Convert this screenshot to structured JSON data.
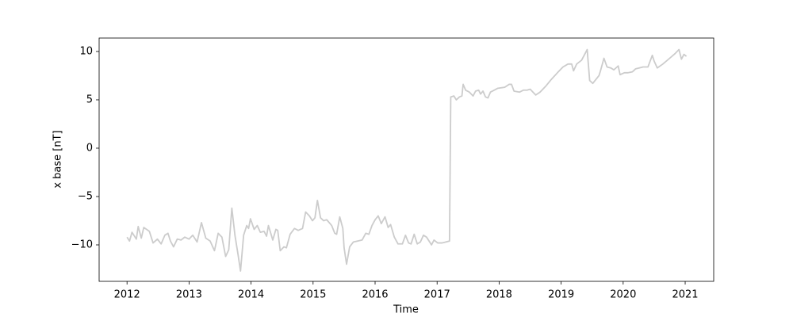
{
  "chart_data": {
    "type": "line",
    "xlabel": "Time",
    "ylabel": "x base [nT]",
    "xlim": [
      2011.55,
      2021.46
    ],
    "ylim": [
      -13.77,
      11.39
    ],
    "xticks": [
      2012,
      2013,
      2014,
      2015,
      2016,
      2017,
      2018,
      2019,
      2020,
      2021
    ],
    "yticks": [
      {
        "value": -10,
        "label": "−10"
      },
      {
        "value": -5,
        "label": "−5"
      },
      0,
      5,
      10
    ],
    "grid": false,
    "series": [
      {
        "color": "#cccccc",
        "x": [
          2012.0,
          2012.04,
          2012.08,
          2012.15,
          2012.18,
          2012.23,
          2012.27,
          2012.36,
          2012.42,
          2012.49,
          2012.55,
          2012.61,
          2012.66,
          2012.7,
          2012.75,
          2012.81,
          2012.87,
          2012.93,
          2013.0,
          2013.06,
          2013.13,
          2013.2,
          2013.27,
          2013.34,
          2013.41,
          2013.47,
          2013.53,
          2013.59,
          2013.64,
          2013.69,
          2013.74,
          2013.79,
          2013.83,
          2013.88,
          2013.93,
          2013.96,
          2013.99,
          2014.05,
          2014.1,
          2014.15,
          2014.21,
          2014.25,
          2014.28,
          2014.35,
          2014.4,
          2014.43,
          2014.47,
          2014.53,
          2014.57,
          2014.63,
          2014.7,
          2014.76,
          2014.83,
          2014.88,
          2014.94,
          2014.99,
          2015.03,
          2015.07,
          2015.12,
          2015.17,
          2015.22,
          2015.3,
          2015.35,
          2015.38,
          2015.43,
          2015.48,
          2015.5,
          2015.54,
          2015.59,
          2015.65,
          2015.72,
          2015.79,
          2015.85,
          2015.9,
          2015.95,
          2016.0,
          2016.05,
          2016.1,
          2016.16,
          2016.21,
          2016.25,
          2016.31,
          2016.37,
          2016.44,
          2016.49,
          2016.54,
          2016.58,
          2016.63,
          2016.68,
          2016.73,
          2016.78,
          2016.83,
          2016.91,
          2016.95,
          2017.01,
          2017.08,
          2017.14,
          2017.2,
          2017.22,
          2017.27,
          2017.31,
          2017.36,
          2017.4,
          2017.42,
          2017.46,
          2017.52,
          2017.58,
          2017.62,
          2017.67,
          2017.7,
          2017.74,
          2017.78,
          2017.82,
          2017.86,
          2017.92,
          2017.98,
          2018.09,
          2018.16,
          2018.2,
          2018.24,
          2018.33,
          2018.39,
          2018.45,
          2018.5,
          2018.59,
          2018.66,
          2018.75,
          2018.84,
          2018.94,
          2019.03,
          2019.11,
          2019.17,
          2019.2,
          2019.25,
          2019.33,
          2019.42,
          2019.46,
          2019.51,
          2019.56,
          2019.61,
          2019.63,
          2019.69,
          2019.74,
          2019.8,
          2019.85,
          2019.92,
          2019.95,
          2020.02,
          2020.08,
          2020.15,
          2020.2,
          2020.26,
          2020.32,
          2020.4,
          2020.47,
          2020.5,
          2020.55,
          2020.64,
          2020.75,
          2020.84,
          2020.9,
          2020.94,
          2020.98,
          2021.02
        ],
        "values": [
          -9.2,
          -9.6,
          -8.7,
          -9.4,
          -8.1,
          -9.3,
          -8.2,
          -8.6,
          -9.8,
          -9.4,
          -9.9,
          -9.0,
          -8.8,
          -9.6,
          -10.2,
          -9.4,
          -9.5,
          -9.2,
          -9.4,
          -9.0,
          -9.7,
          -7.7,
          -9.3,
          -9.6,
          -10.6,
          -8.8,
          -9.2,
          -11.2,
          -10.5,
          -6.2,
          -9.0,
          -11.0,
          -12.7,
          -9.0,
          -8.0,
          -8.3,
          -7.3,
          -8.4,
          -8.0,
          -8.7,
          -8.6,
          -9.1,
          -8.0,
          -9.5,
          -8.4,
          -8.5,
          -10.6,
          -10.2,
          -10.3,
          -8.9,
          -8.3,
          -8.5,
          -8.3,
          -6.6,
          -7.0,
          -7.5,
          -7.2,
          -5.4,
          -7.2,
          -7.5,
          -7.4,
          -8.0,
          -8.8,
          -8.9,
          -7.1,
          -8.3,
          -10.3,
          -12.0,
          -10.2,
          -9.7,
          -9.6,
          -9.5,
          -8.8,
          -8.9,
          -8.0,
          -7.4,
          -7.0,
          -7.8,
          -7.1,
          -8.2,
          -7.9,
          -9.2,
          -9.9,
          -9.9,
          -9.0,
          -9.8,
          -9.9,
          -8.9,
          -9.9,
          -9.7,
          -9.0,
          -9.2,
          -10.0,
          -9.5,
          -9.8,
          -9.8,
          -9.7,
          -9.6,
          5.3,
          5.4,
          5.0,
          5.3,
          5.4,
          6.6,
          6.0,
          5.8,
          5.4,
          5.9,
          6.0,
          5.6,
          5.9,
          5.3,
          5.2,
          5.8,
          6.0,
          6.2,
          6.3,
          6.6,
          6.6,
          5.9,
          5.8,
          6.0,
          6.0,
          6.1,
          5.5,
          5.8,
          6.4,
          7.1,
          7.8,
          8.4,
          8.7,
          8.7,
          8.0,
          8.7,
          9.1,
          10.2,
          7.0,
          6.7,
          7.1,
          7.5,
          7.9,
          9.3,
          8.4,
          8.3,
          8.1,
          8.5,
          7.6,
          7.8,
          7.8,
          7.9,
          8.2,
          8.3,
          8.4,
          8.4,
          9.6,
          9.0,
          8.3,
          8.7,
          9.3,
          9.8,
          10.2,
          9.2,
          9.7,
          9.5
        ]
      }
    ]
  }
}
